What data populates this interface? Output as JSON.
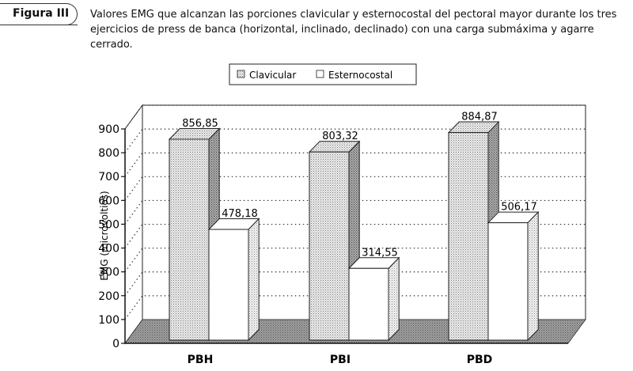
{
  "figure": {
    "label": "Figura III",
    "caption": "Valores EMG que alcanzan las porciones  clavicular y esternocostal del pectoral mayor durante los tres ejercicios de press de banca (horizontal, inclinado, declinado) con  una carga submáxima y agarre cerrado."
  },
  "chart_data": {
    "type": "bar",
    "categories": [
      "PBH",
      "PBI",
      "PBD"
    ],
    "series": [
      {
        "name": "Clavicular",
        "values": [
          856.85,
          803.32,
          884.87
        ],
        "labels": [
          "856,85",
          "803,32",
          "884,87"
        ]
      },
      {
        "name": "Esternocostal",
        "values": [
          478.18,
          314.55,
          506.17
        ],
        "labels": [
          "478,18",
          "314,55",
          "506,17"
        ]
      }
    ],
    "title": "",
    "xlabel": "",
    "ylabel": "EMG (microvoltios)",
    "ylim": [
      0,
      900
    ],
    "yticks": [
      "0",
      "100",
      "200",
      "300",
      "400",
      "500",
      "600",
      "700",
      "800",
      "900"
    ],
    "grid": true,
    "legend_position": "top-center",
    "colors": {
      "clavicular": "#c8c8c8",
      "esternocostal": "#ffffff",
      "floor": "#9a9a9a"
    }
  }
}
